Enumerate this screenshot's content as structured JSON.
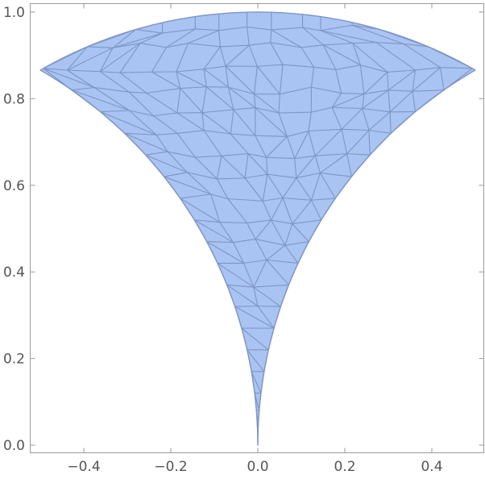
{
  "chart_data": {
    "type": "mesh",
    "title": "",
    "xlabel": "",
    "ylabel": "",
    "xlim": [
      -0.52,
      0.52
    ],
    "ylim": [
      -0.02,
      1.02
    ],
    "x_ticks": [
      {
        "value": -0.4,
        "label": "−0.4"
      },
      {
        "value": -0.2,
        "label": "−0.2"
      },
      {
        "value": 0.0,
        "label": "0.0"
      },
      {
        "value": 0.2,
        "label": "0.2"
      },
      {
        "value": 0.4,
        "label": "0.4"
      }
    ],
    "y_ticks": [
      {
        "value": 0.0,
        "label": "0.0"
      },
      {
        "value": 0.2,
        "label": "0.2"
      },
      {
        "value": 0.4,
        "label": "0.4"
      },
      {
        "value": 0.6,
        "label": "0.6"
      },
      {
        "value": 0.8,
        "label": "0.8"
      },
      {
        "value": 1.0,
        "label": "1.0"
      }
    ],
    "region": {
      "description_shape": "unit-circle top arc between two circular cusps meeting at origin",
      "top_arc": {
        "center": [
          0,
          0
        ],
        "radius": 1.0,
        "angle_range_deg": [
          60,
          120
        ]
      },
      "left_arc": {
        "center": [
          -1,
          0
        ],
        "radius": 1.0,
        "from": [
          -0.5,
          0.866
        ],
        "to": [
          0,
          0
        ]
      },
      "right_arc": {
        "center": [
          1,
          0
        ],
        "radius": 1.0,
        "from": [
          0.5,
          0.866
        ],
        "to": [
          0,
          0
        ]
      }
    },
    "fill_color": "#a9c4f2",
    "edge_color": "#7f95c4",
    "frame_color": "#9a9a9a"
  }
}
